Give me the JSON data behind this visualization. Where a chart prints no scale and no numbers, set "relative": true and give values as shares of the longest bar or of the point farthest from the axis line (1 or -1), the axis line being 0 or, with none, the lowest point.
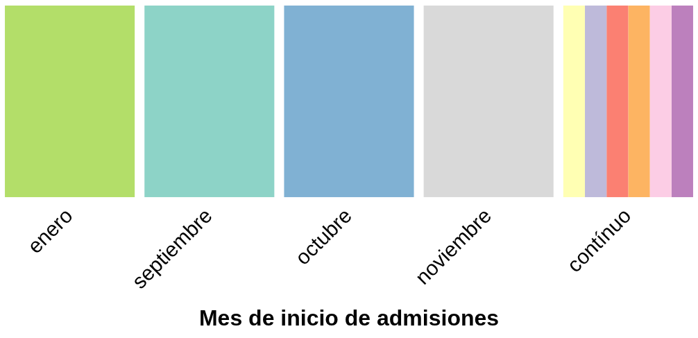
{
  "chart_data": {
    "type": "bar",
    "relative": true,
    "xlabel": "Mes de inicio de admisiones",
    "categories": [
      "enero",
      "septiembre",
      "octubre",
      "noviembre",
      "contínuo"
    ],
    "legend": false,
    "grid": false,
    "series": [
      {
        "colors": [
          "#b3de69",
          "#8dd3c7",
          "#80b1d3",
          "#d9d9d9",
          null
        ],
        "values": [
          1,
          1,
          1,
          1,
          null
        ]
      },
      {
        "color": "#ffffb3",
        "values": [
          null,
          null,
          null,
          null,
          1
        ]
      },
      {
        "color": "#bebada",
        "values": [
          null,
          null,
          null,
          null,
          1
        ]
      },
      {
        "color": "#fb8072",
        "values": [
          null,
          null,
          null,
          null,
          1
        ]
      },
      {
        "color": "#fdb462",
        "values": [
          null,
          null,
          null,
          null,
          1
        ]
      },
      {
        "color": "#fccde5",
        "values": [
          null,
          null,
          null,
          null,
          1
        ]
      },
      {
        "color": "#bc80bd",
        "values": [
          null,
          null,
          null,
          null,
          1
        ]
      }
    ]
  }
}
